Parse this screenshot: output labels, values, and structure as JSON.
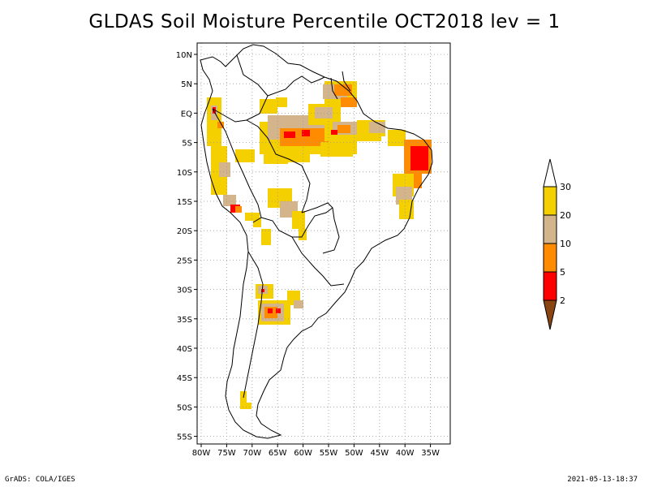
{
  "title": "GLDAS Soil Moisture Percentile OCT2018 lev = 1",
  "footer": {
    "left": "GrADS: COLA/IGES",
    "right": "2021-05-13-18:37"
  },
  "map": {
    "lat_labels": [
      "10N",
      "5N",
      "EQ",
      "5S",
      "10S",
      "15S",
      "20S",
      "25S",
      "30S",
      "35S",
      "40S",
      "45S",
      "50S",
      "55S"
    ],
    "lon_labels": [
      "80W",
      "75W",
      "70W",
      "65W",
      "60W",
      "55W",
      "50W",
      "45W",
      "40W",
      "35W"
    ]
  },
  "legend": {
    "labels": [
      "30",
      "20",
      "10",
      "5",
      "2"
    ],
    "colors": [
      "#ffffff",
      "#f5d000",
      "#d4b48a",
      "#ff8c00",
      "#ff0000",
      "#8b4513"
    ]
  },
  "categories": [
    {
      "key": "y",
      "color": "#f5d000",
      "range": "20-30"
    },
    {
      "key": "t",
      "color": "#d4b48a",
      "range": "10-20"
    },
    {
      "key": "o",
      "color": "#ff8c00",
      "range": "5-10"
    },
    {
      "key": "r",
      "color": "#ff0000",
      "range": "2-5"
    }
  ]
}
